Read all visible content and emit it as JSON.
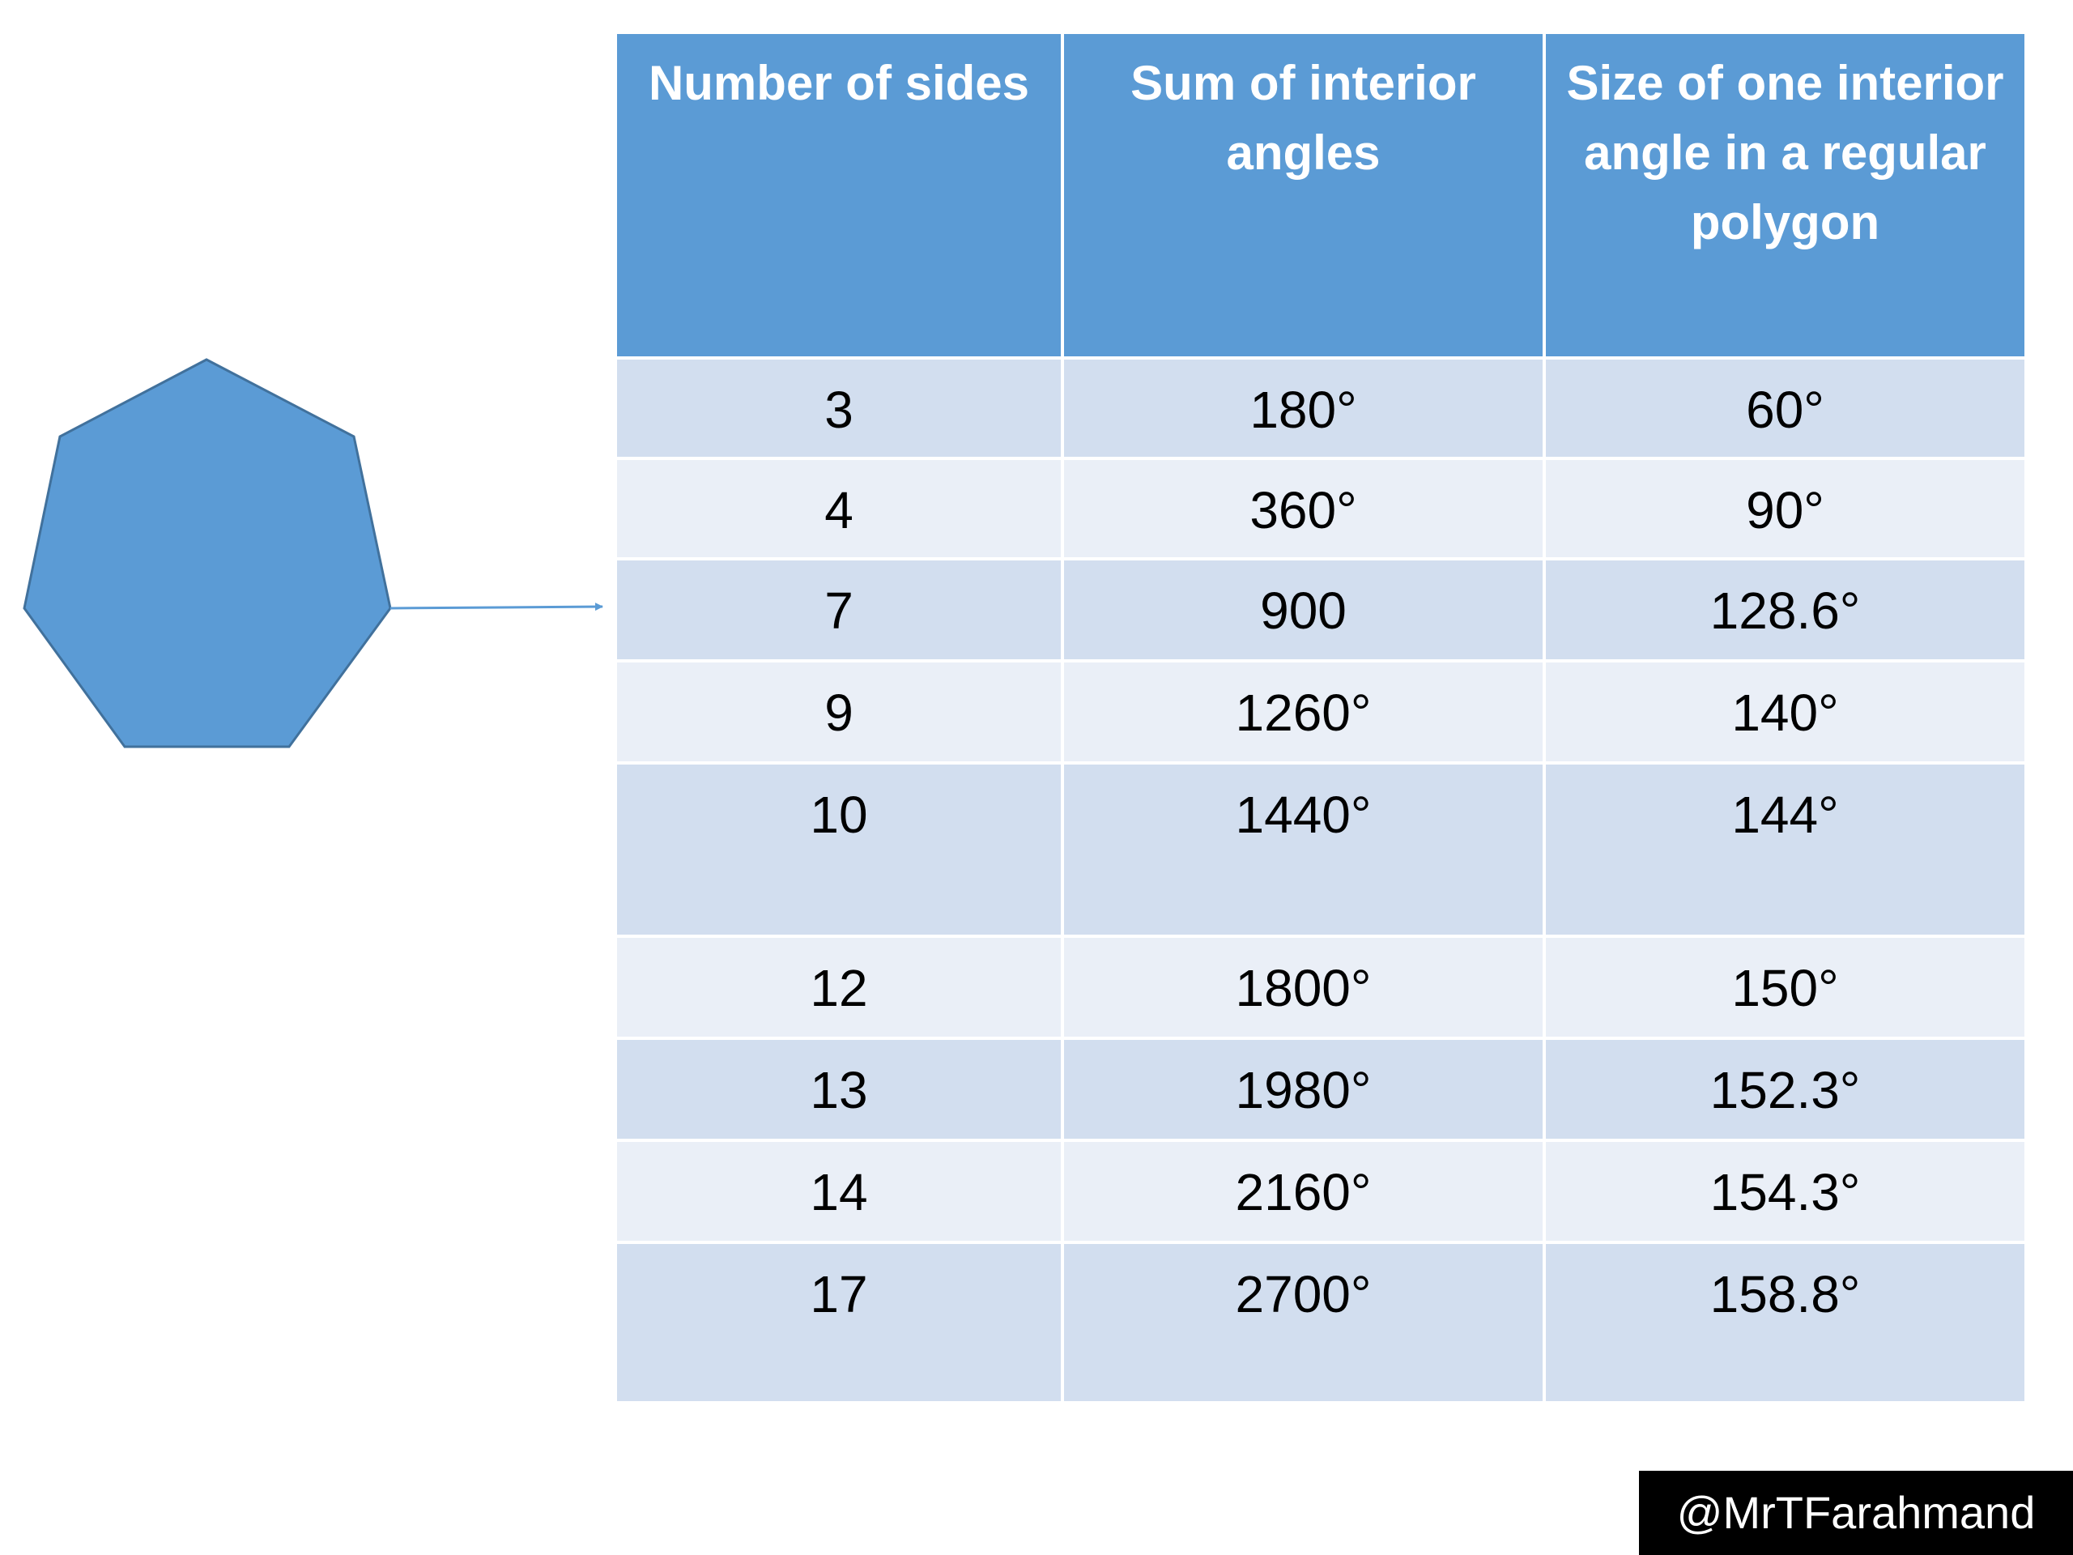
{
  "table": {
    "headers": [
      "Number of sides",
      "Sum of interior angles",
      "Size of one interior angle in a regular polygon"
    ],
    "rows": [
      [
        "3",
        "180°",
        "60°"
      ],
      [
        "4",
        "360°",
        "90°"
      ],
      [
        "7",
        "900",
        "128.6°"
      ],
      [
        "9",
        "1260°",
        "140°"
      ],
      [
        "10",
        "1440°",
        "144°"
      ],
      [
        "12",
        "1800°",
        "150°"
      ],
      [
        "13",
        "1980°",
        "152.3°"
      ],
      [
        "14",
        "2160°",
        "154.3°"
      ],
      [
        "17",
        "2700°",
        "158.8°"
      ]
    ]
  },
  "credit": "@MrTFarahmand",
  "colors": {
    "shape_fill": "#5b9bd5",
    "header_bg": "#5b9bd5",
    "row_band_dark": "#d2deef",
    "row_band_light": "#eaeff7"
  },
  "icons": [
    "heptagon-shape",
    "arrow-icon"
  ]
}
